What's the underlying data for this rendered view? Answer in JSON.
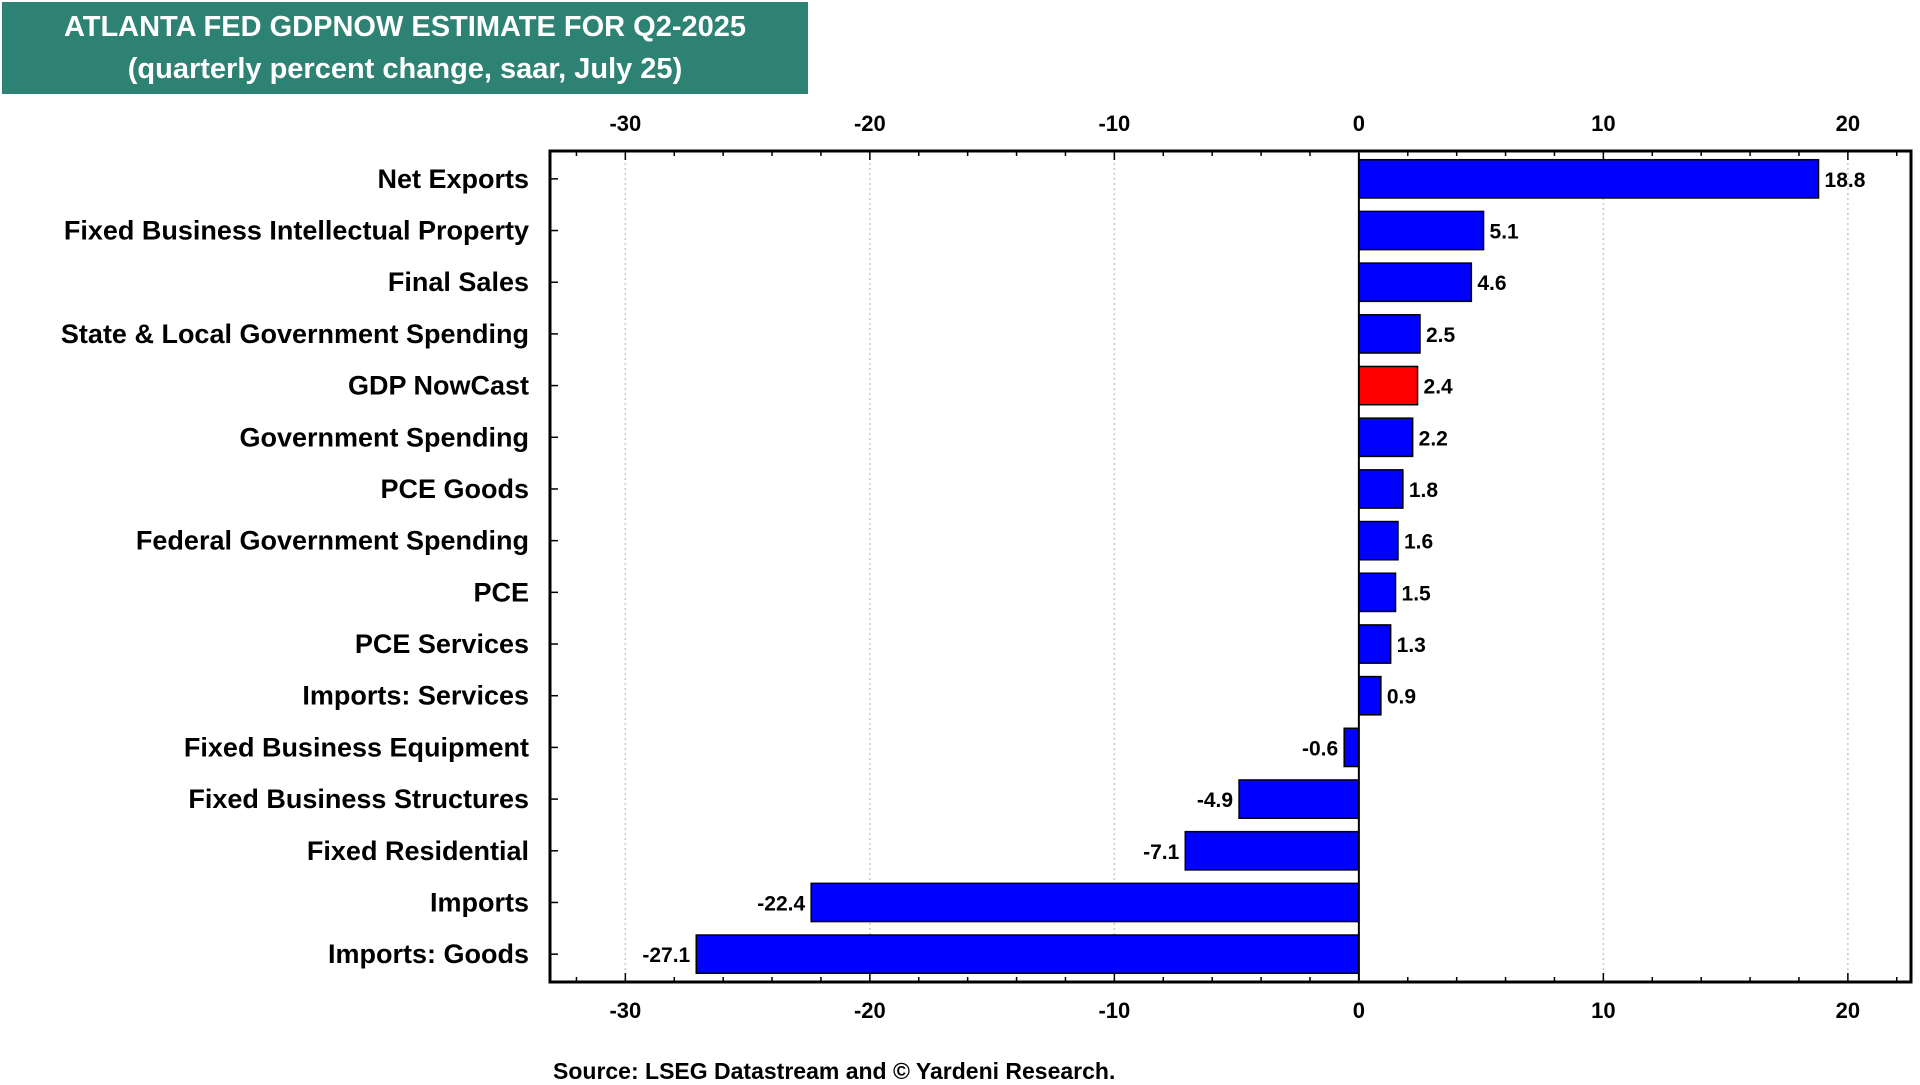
{
  "title": {
    "line1": "ATLANTA FED GDPNOW ESTIMATE FOR Q2-2025",
    "line2": "(quarterly percent change, saar, July 25)"
  },
  "source": "Source: LSEG Datastream and © Yardeni Research.",
  "colors": {
    "title_bg": "#2e8273",
    "bar": "#0000ff",
    "highlight_bar": "#ff0000",
    "gridline": "#c8c8c8"
  },
  "chart_data": {
    "type": "bar",
    "orientation": "horizontal",
    "title": "ATLANTA FED GDPNOW ESTIMATE FOR Q2-2025",
    "subtitle": "(quarterly percent change, saar, July 25)",
    "xlim": [
      -33,
      22.5
    ],
    "xticks": [
      -30,
      -20,
      -10,
      0,
      10,
      20
    ],
    "xtick_labels": [
      "-30",
      "-20",
      "-10",
      "0",
      "10",
      "20"
    ],
    "grid": "vertical dotted",
    "categories": [
      "Net Exports",
      "Fixed Business Intellectual Property",
      "Final Sales",
      "State & Local Government Spending",
      "GDP NowCast",
      "Government Spending",
      "PCE Goods",
      "Federal Government Spending",
      "PCE",
      "PCE Services",
      "Imports: Services",
      "Fixed Business Equipment",
      "Fixed Business Structures",
      "Fixed Residential",
      "Imports",
      "Imports: Goods"
    ],
    "values": [
      18.8,
      5.1,
      4.6,
      2.5,
      2.4,
      2.2,
      1.8,
      1.6,
      1.5,
      1.3,
      0.9,
      -0.6,
      -4.9,
      -7.1,
      -22.4,
      -27.1
    ],
    "value_labels": [
      "18.8",
      "5.1",
      "4.6",
      "2.5",
      "2.4",
      "2.2",
      "1.8",
      "1.6",
      "1.5",
      "1.3",
      "0.9",
      "-0.6",
      "-4.9",
      "-7.1",
      "-22.4",
      "-27.1"
    ],
    "highlight": "GDP NowCast"
  }
}
